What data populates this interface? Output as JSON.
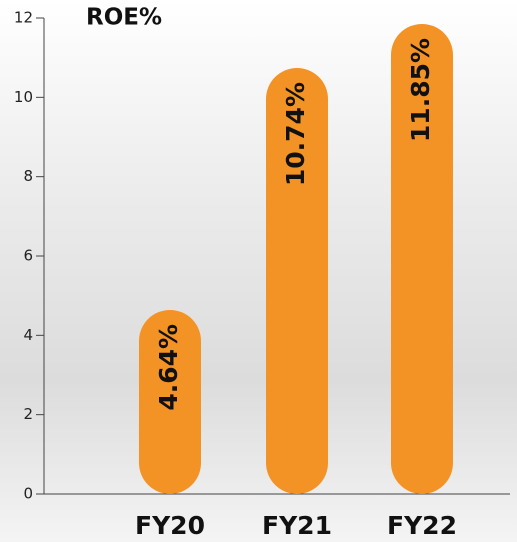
{
  "chart_data": {
    "type": "bar",
    "title": "ROE%",
    "categories": [
      "FY20",
      "FY21",
      "FY22"
    ],
    "values": [
      4.64,
      10.74,
      11.85
    ],
    "value_labels": [
      "4.64%",
      "10.74%",
      "11.85%"
    ],
    "color": "#f39325",
    "ylim": [
      0,
      12
    ],
    "yticks": [
      0,
      2,
      4,
      6,
      8,
      10,
      12
    ]
  }
}
